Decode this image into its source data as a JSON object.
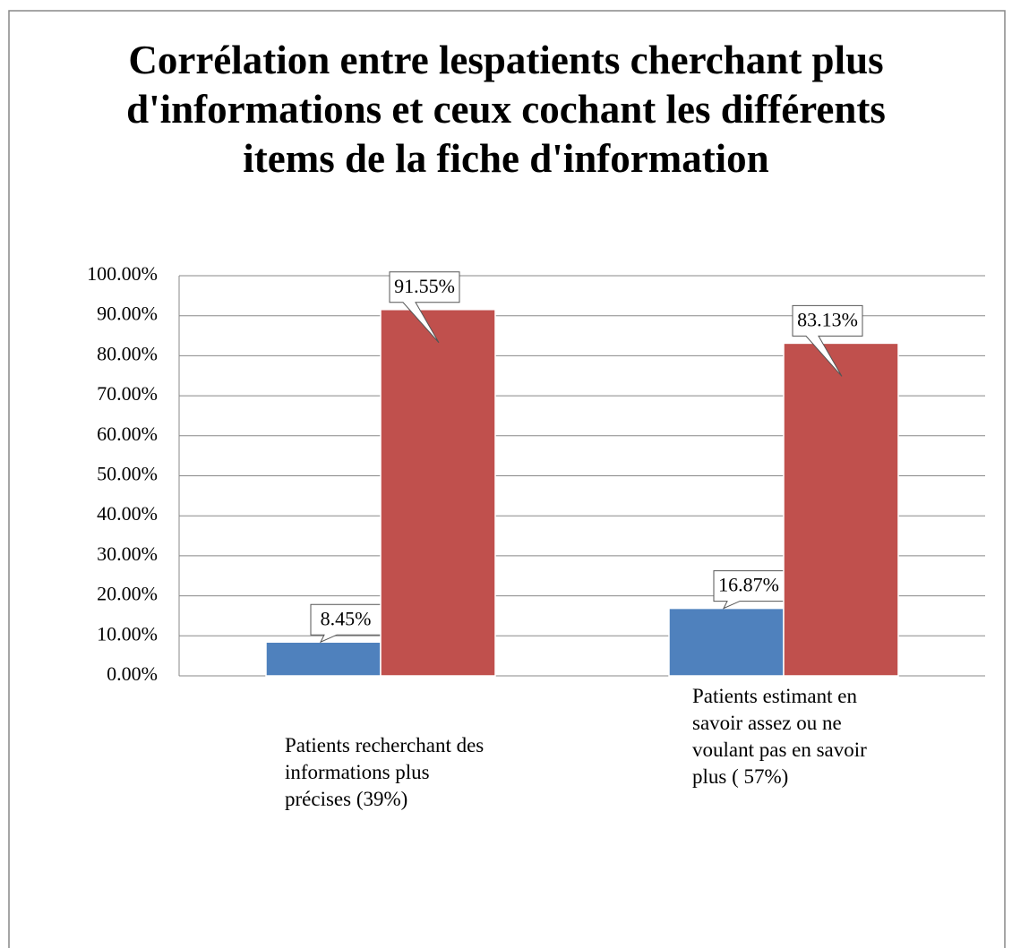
{
  "chart_data": {
    "type": "bar",
    "title": "Corrélation entre lespatients cherchant plus d'informations et ceux cochant les différents items de la fiche d'information",
    "categories": [
      "Patients recherchant des informations plus précises (39%)",
      "Patients estimant en savoir assez ou ne voulant pas en savoir plus ( 57%)"
    ],
    "series": [
      {
        "color": "#4f81bd",
        "values": [
          8.45,
          16.87
        ],
        "value_labels": [
          "8.45%",
          "16.87%"
        ]
      },
      {
        "color": "#c0504d",
        "values": [
          91.55,
          83.13
        ],
        "value_labels": [
          "91.55%",
          "83.13%"
        ]
      }
    ],
    "ylim": [
      0,
      100
    ],
    "yticks": [
      {
        "value": 0,
        "label": "0.00%"
      },
      {
        "value": 10,
        "label": "10.00%"
      },
      {
        "value": 20,
        "label": "20.00%"
      },
      {
        "value": 30,
        "label": "30.00%"
      },
      {
        "value": 40,
        "label": "40.00%"
      },
      {
        "value": 50,
        "label": "50.00%"
      },
      {
        "value": 60,
        "label": "60.00%"
      },
      {
        "value": 70,
        "label": "70.00%"
      },
      {
        "value": 80,
        "label": "80.00%"
      },
      {
        "value": 90,
        "label": "90.00%"
      },
      {
        "value": 100,
        "label": "100.00%"
      }
    ],
    "grid": true
  }
}
